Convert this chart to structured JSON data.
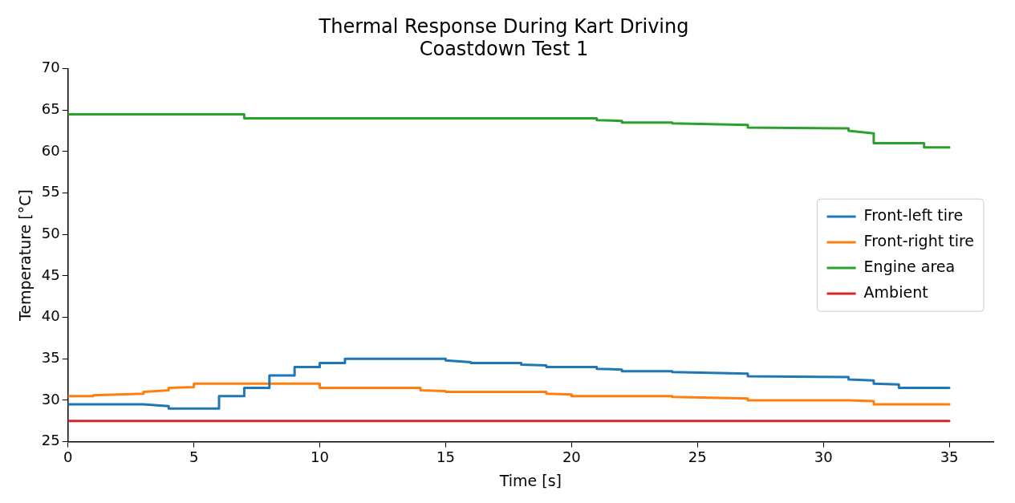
{
  "chart_data": {
    "type": "line",
    "title": "Thermal Response During Kart Driving",
    "subtitle": "Coastdown Test 1",
    "xlabel": "Time [s]",
    "ylabel": "Temperature [°C]",
    "xlim": [
      0,
      36.75
    ],
    "xticks": [
      0,
      5,
      10,
      15,
      20,
      25,
      30,
      35
    ],
    "ylim": [
      25,
      70
    ],
    "yticks": [
      25,
      30,
      35,
      40,
      45,
      50,
      55,
      60,
      65,
      70
    ],
    "grid": false,
    "legend": "right",
    "series": [
      {
        "name": "Front-left tire",
        "color": "#1f77b4",
        "x": [
          0,
          3,
          4,
          4,
          6,
          6,
          7,
          7,
          8,
          8,
          9,
          9,
          10,
          10,
          11,
          11,
          15,
          15,
          16,
          16,
          18,
          18,
          19,
          19,
          20,
          21,
          21,
          22,
          22,
          24,
          24,
          27,
          27,
          31,
          31,
          32,
          32,
          33,
          33,
          35
        ],
        "values": [
          29.5,
          29.5,
          29.3,
          29.0,
          29.0,
          30.5,
          30.5,
          31.5,
          31.5,
          33.0,
          33.0,
          34.0,
          34.0,
          34.5,
          34.5,
          35.0,
          35.0,
          34.8,
          34.6,
          34.5,
          34.5,
          34.3,
          34.2,
          34.0,
          34.0,
          34.0,
          33.8,
          33.7,
          33.5,
          33.5,
          33.4,
          33.2,
          32.9,
          32.8,
          32.5,
          32.4,
          32.0,
          31.9,
          31.5,
          31.5
        ]
      },
      {
        "name": "Front-right tire",
        "color": "#ff7f0e",
        "x": [
          0,
          1,
          1,
          3,
          3,
          4,
          4,
          5,
          5,
          10,
          10,
          14,
          14,
          15,
          15,
          19,
          19,
          20,
          20,
          24,
          24,
          27,
          27,
          31,
          32,
          32,
          35
        ],
        "values": [
          30.5,
          30.5,
          30.6,
          30.8,
          31.0,
          31.2,
          31.5,
          31.6,
          32.0,
          32.0,
          31.5,
          31.5,
          31.2,
          31.1,
          31.0,
          31.0,
          30.8,
          30.7,
          30.5,
          30.5,
          30.4,
          30.2,
          30.0,
          30.0,
          29.9,
          29.5,
          29.5
        ]
      },
      {
        "name": "Engine area",
        "color": "#2ca02c",
        "x": [
          0,
          7,
          7,
          21,
          21,
          22,
          22,
          24,
          24,
          27,
          27,
          31,
          31,
          32,
          32,
          34,
          34,
          35
        ],
        "values": [
          64.5,
          64.5,
          64.0,
          64.0,
          63.8,
          63.7,
          63.5,
          63.5,
          63.4,
          63.2,
          62.9,
          62.8,
          62.5,
          62.2,
          61.0,
          61.0,
          60.5,
          60.5
        ]
      },
      {
        "name": "Ambient",
        "color": "#d62728",
        "x": [
          0,
          35
        ],
        "values": [
          27.5,
          27.5
        ]
      }
    ]
  }
}
